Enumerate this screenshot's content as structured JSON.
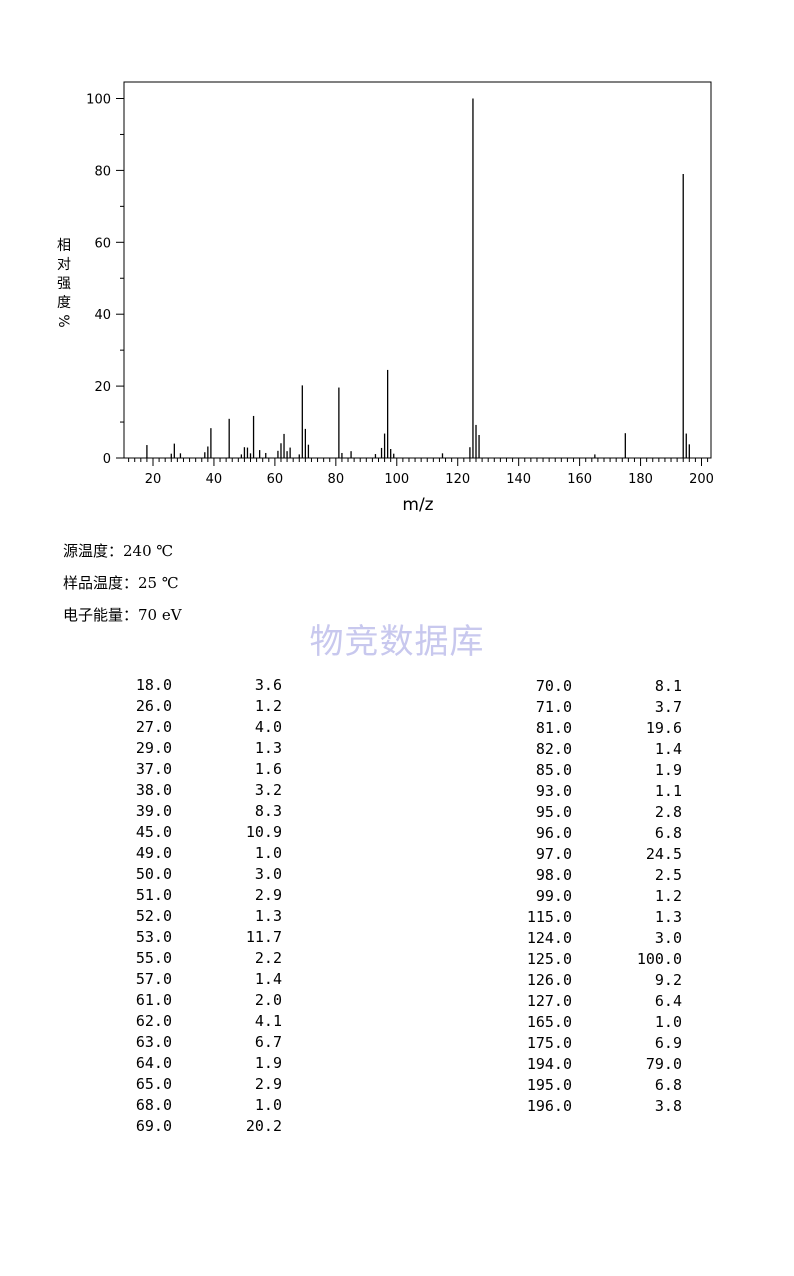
{
  "chart_data": {
    "type": "bar",
    "xlabel": "m/z",
    "ylabel_chars": [
      "相",
      "对",
      "强",
      "度",
      "%"
    ],
    "xlim": [
      10,
      203
    ],
    "ylim": [
      0,
      100
    ],
    "xticks": [
      20,
      40,
      60,
      80,
      100,
      120,
      140,
      160,
      180,
      200
    ],
    "yticks": [
      0,
      20,
      40,
      60,
      80,
      100
    ],
    "grid": false,
    "peaks": [
      {
        "mz": 18.0,
        "intensity": 3.6
      },
      {
        "mz": 26.0,
        "intensity": 1.2
      },
      {
        "mz": 27.0,
        "intensity": 4.0
      },
      {
        "mz": 29.0,
        "intensity": 1.3
      },
      {
        "mz": 37.0,
        "intensity": 1.6
      },
      {
        "mz": 38.0,
        "intensity": 3.2
      },
      {
        "mz": 39.0,
        "intensity": 8.3
      },
      {
        "mz": 45.0,
        "intensity": 10.9
      },
      {
        "mz": 49.0,
        "intensity": 1.0
      },
      {
        "mz": 50.0,
        "intensity": 3.0
      },
      {
        "mz": 51.0,
        "intensity": 2.9
      },
      {
        "mz": 52.0,
        "intensity": 1.3
      },
      {
        "mz": 53.0,
        "intensity": 11.7
      },
      {
        "mz": 55.0,
        "intensity": 2.2
      },
      {
        "mz": 57.0,
        "intensity": 1.4
      },
      {
        "mz": 61.0,
        "intensity": 2.0
      },
      {
        "mz": 62.0,
        "intensity": 4.1
      },
      {
        "mz": 63.0,
        "intensity": 6.7
      },
      {
        "mz": 64.0,
        "intensity": 1.9
      },
      {
        "mz": 65.0,
        "intensity": 2.9
      },
      {
        "mz": 68.0,
        "intensity": 1.0
      },
      {
        "mz": 69.0,
        "intensity": 20.2
      },
      {
        "mz": 70.0,
        "intensity": 8.1
      },
      {
        "mz": 71.0,
        "intensity": 3.7
      },
      {
        "mz": 81.0,
        "intensity": 19.6
      },
      {
        "mz": 82.0,
        "intensity": 1.4
      },
      {
        "mz": 85.0,
        "intensity": 1.9
      },
      {
        "mz": 93.0,
        "intensity": 1.1
      },
      {
        "mz": 95.0,
        "intensity": 2.8
      },
      {
        "mz": 96.0,
        "intensity": 6.8
      },
      {
        "mz": 97.0,
        "intensity": 24.5
      },
      {
        "mz": 98.0,
        "intensity": 2.5
      },
      {
        "mz": 99.0,
        "intensity": 1.2
      },
      {
        "mz": 115.0,
        "intensity": 1.3
      },
      {
        "mz": 124.0,
        "intensity": 3.0
      },
      {
        "mz": 125.0,
        "intensity": 100.0
      },
      {
        "mz": 126.0,
        "intensity": 9.2
      },
      {
        "mz": 127.0,
        "intensity": 6.4
      },
      {
        "mz": 165.0,
        "intensity": 1.0
      },
      {
        "mz": 175.0,
        "intensity": 6.9
      },
      {
        "mz": 194.0,
        "intensity": 79.0
      },
      {
        "mz": 195.0,
        "intensity": 6.8
      },
      {
        "mz": 196.0,
        "intensity": 3.8
      }
    ]
  },
  "conditions": {
    "source_temp": "源温度：240 ℃",
    "sample_temp": "样品温度：25 ℃",
    "electron_energy": "电子能量：70 eV"
  },
  "watermark": "物竞数据库",
  "table": {
    "left": [
      [
        "18.0",
        "3.6"
      ],
      [
        "26.0",
        "1.2"
      ],
      [
        "27.0",
        "4.0"
      ],
      [
        "29.0",
        "1.3"
      ],
      [
        "37.0",
        "1.6"
      ],
      [
        "38.0",
        "3.2"
      ],
      [
        "39.0",
        "8.3"
      ],
      [
        "45.0",
        "10.9"
      ],
      [
        "49.0",
        "1.0"
      ],
      [
        "50.0",
        "3.0"
      ],
      [
        "51.0",
        "2.9"
      ],
      [
        "52.0",
        "1.3"
      ],
      [
        "53.0",
        "11.7"
      ],
      [
        "55.0",
        "2.2"
      ],
      [
        "57.0",
        "1.4"
      ],
      [
        "61.0",
        "2.0"
      ],
      [
        "62.0",
        "4.1"
      ],
      [
        "63.0",
        "6.7"
      ],
      [
        "64.0",
        "1.9"
      ],
      [
        "65.0",
        "2.9"
      ],
      [
        "68.0",
        "1.0"
      ],
      [
        "69.0",
        "20.2"
      ]
    ],
    "right": [
      [
        "70.0",
        "8.1"
      ],
      [
        "71.0",
        "3.7"
      ],
      [
        "81.0",
        "19.6"
      ],
      [
        "82.0",
        "1.4"
      ],
      [
        "85.0",
        "1.9"
      ],
      [
        "93.0",
        "1.1"
      ],
      [
        "95.0",
        "2.8"
      ],
      [
        "96.0",
        "6.8"
      ],
      [
        "97.0",
        "24.5"
      ],
      [
        "98.0",
        "2.5"
      ],
      [
        "99.0",
        "1.2"
      ],
      [
        "115.0",
        "1.3"
      ],
      [
        "124.0",
        "3.0"
      ],
      [
        "125.0",
        "100.0"
      ],
      [
        "126.0",
        "9.2"
      ],
      [
        "127.0",
        "6.4"
      ],
      [
        "165.0",
        "1.0"
      ],
      [
        "175.0",
        "6.9"
      ],
      [
        "194.0",
        "79.0"
      ],
      [
        "195.0",
        "6.8"
      ],
      [
        "196.0",
        "3.8"
      ]
    ]
  }
}
